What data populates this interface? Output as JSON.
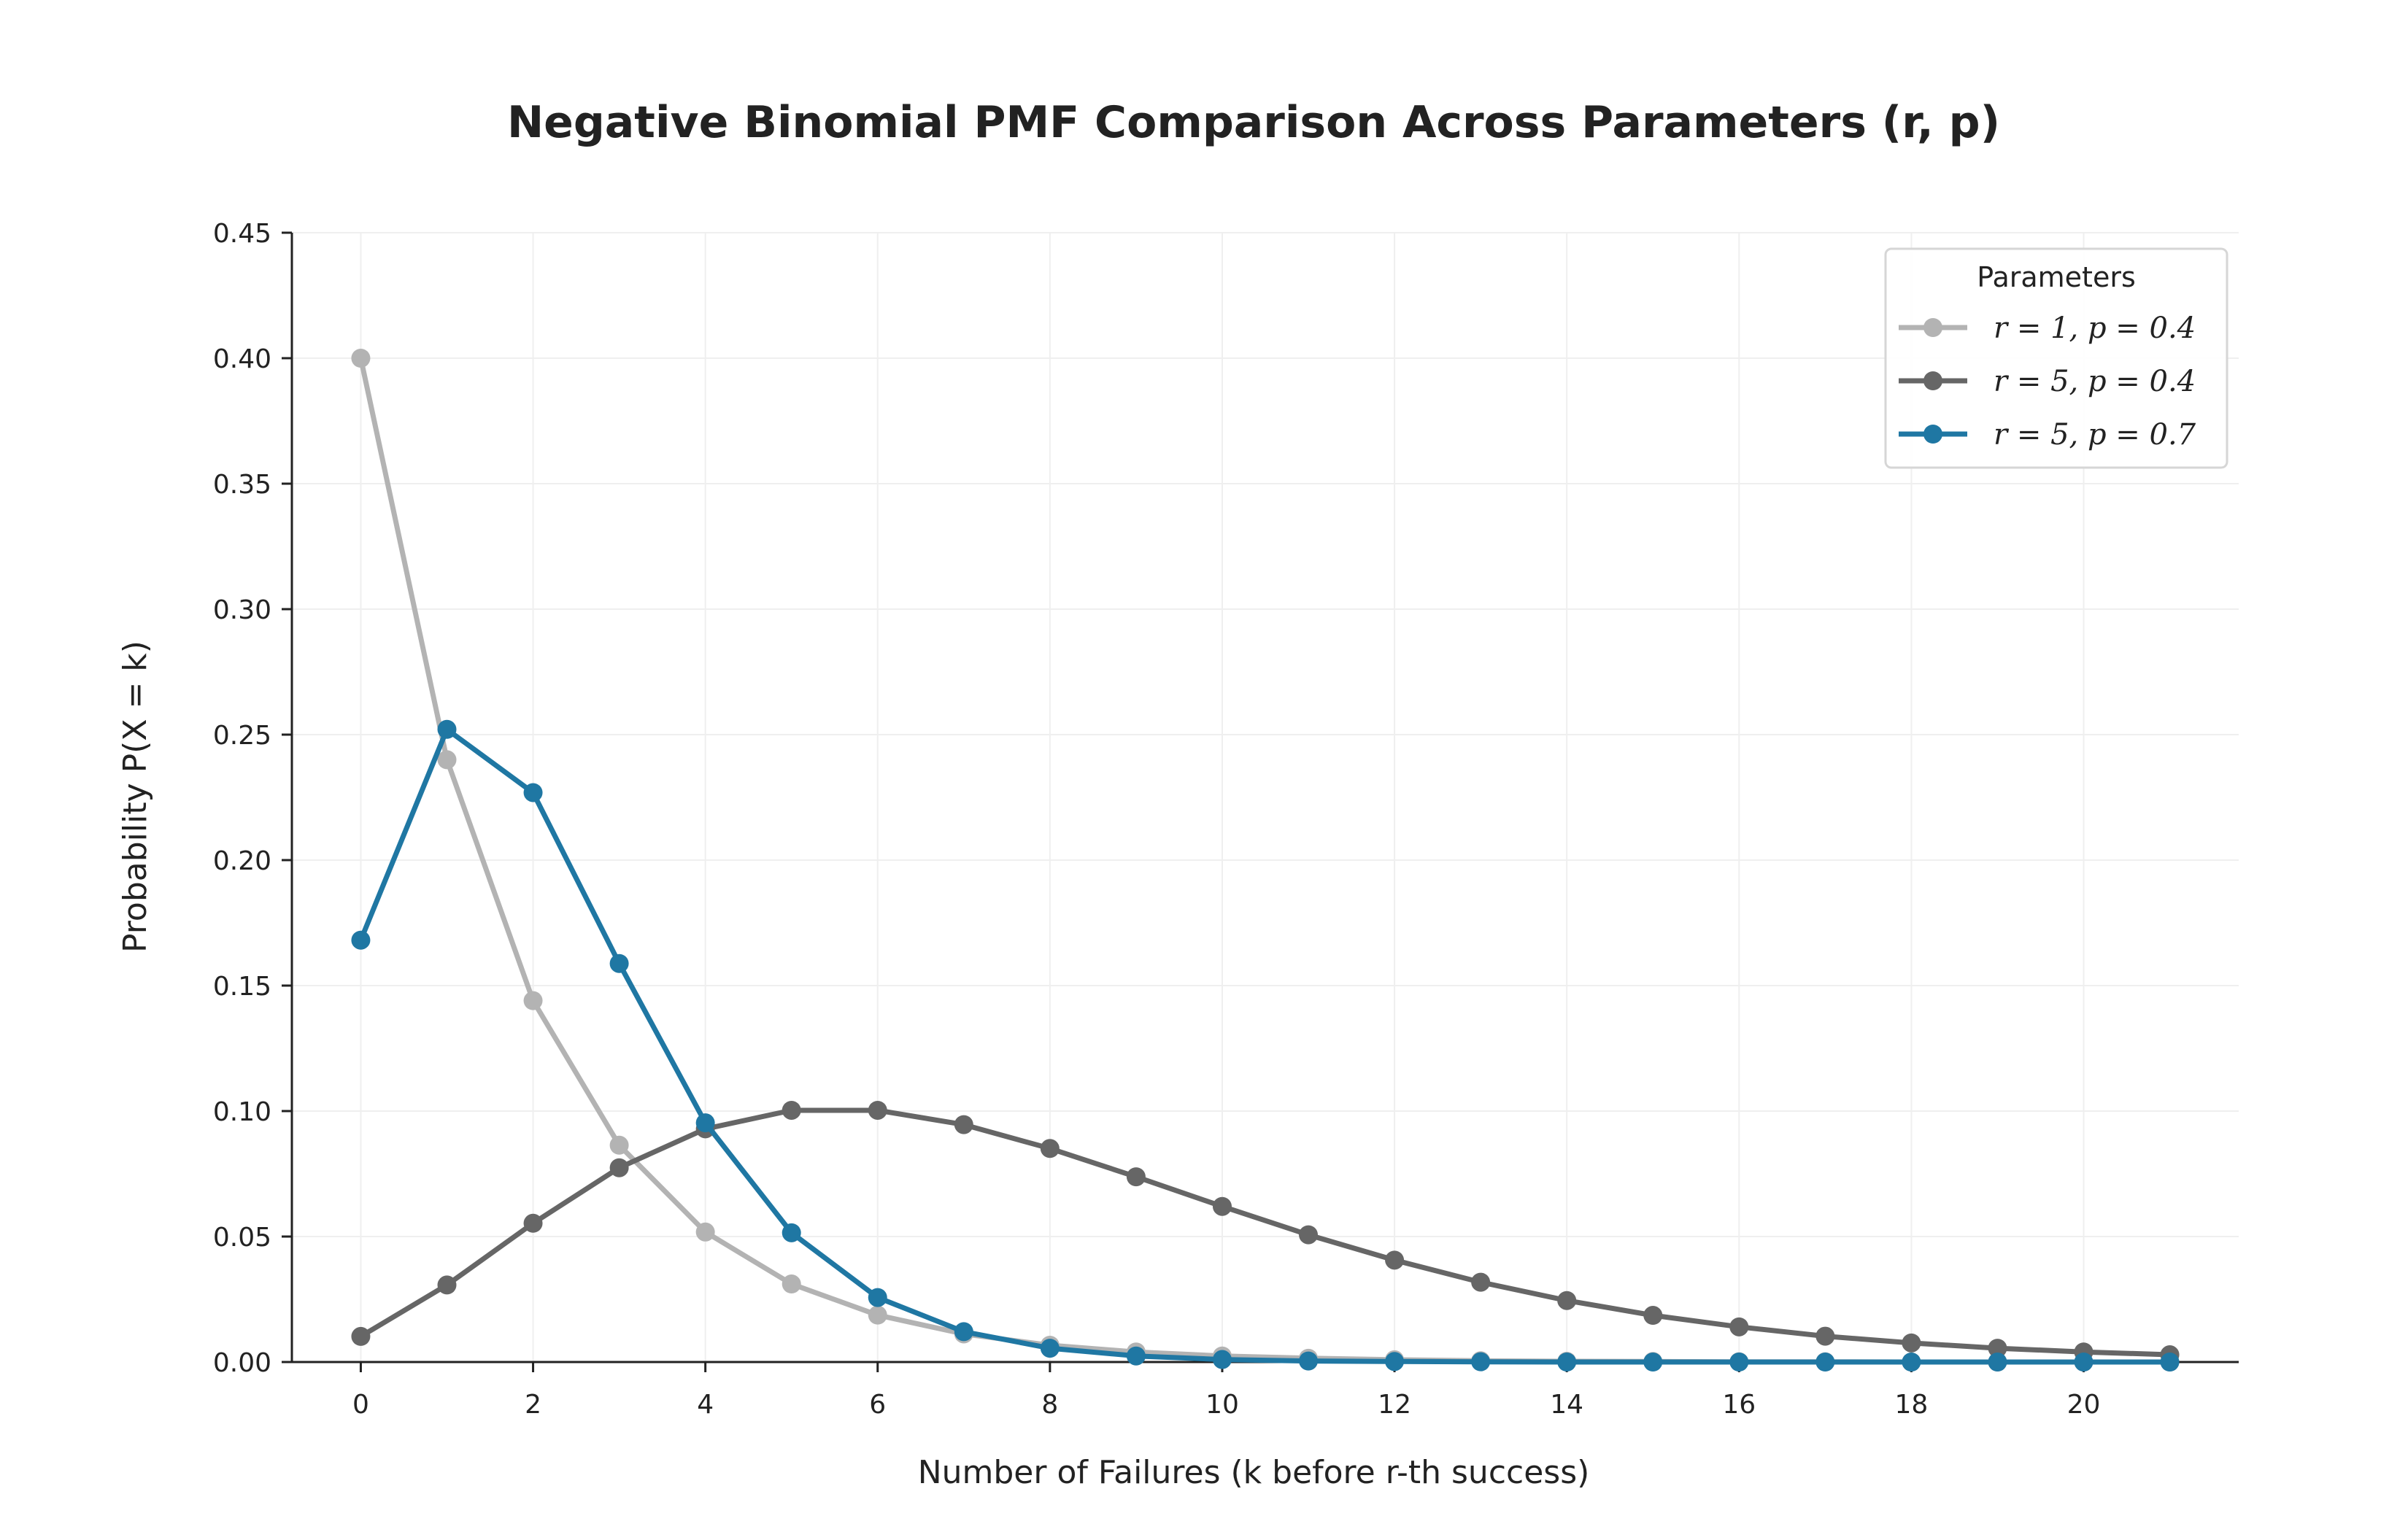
{
  "chart_data": {
    "type": "line",
    "title": "Negative Binomial PMF Comparison Across Parameters (r, p)",
    "xlabel": "Number of Failures (k before r-th success)",
    "ylabel": "Probability P(X = k)",
    "xlim": [
      -0.8,
      21.8
    ],
    "ylim": [
      0,
      0.45
    ],
    "xticks": [
      0,
      2,
      4,
      6,
      8,
      10,
      12,
      14,
      16,
      18,
      20
    ],
    "yticks": [
      0.0,
      0.05,
      0.1,
      0.15,
      0.2,
      0.25,
      0.3,
      0.35,
      0.4,
      0.45
    ],
    "ytick_labels": [
      "0.00",
      "0.05",
      "0.10",
      "0.15",
      "0.20",
      "0.25",
      "0.30",
      "0.35",
      "0.40",
      "0.45"
    ],
    "grid": true,
    "legend": {
      "title": "Parameters",
      "position": "top-right"
    },
    "x": [
      0,
      1,
      2,
      3,
      4,
      5,
      6,
      7,
      8,
      9,
      10,
      11,
      12,
      13,
      14,
      15,
      16,
      17,
      18,
      19,
      20,
      21
    ],
    "series": [
      {
        "name": "r = 1,  p = 0.4",
        "color": "#b3b3b3",
        "values": [
          0.4,
          0.24,
          0.144,
          0.0864,
          0.0518,
          0.0311,
          0.0187,
          0.0112,
          0.0067,
          0.004,
          0.0024,
          0.0015,
          0.0009,
          0.0005,
          0.0003,
          0.0002,
          0.0001,
          0.0001,
          0.0,
          0.0,
          0.0,
          0.0
        ]
      },
      {
        "name": "r = 5,  p = 0.4",
        "color": "#666666",
        "values": [
          0.0102,
          0.0307,
          0.0553,
          0.0774,
          0.0929,
          0.1003,
          0.1003,
          0.0946,
          0.0851,
          0.0738,
          0.062,
          0.0507,
          0.0406,
          0.0318,
          0.0245,
          0.0186,
          0.014,
          0.0103,
          0.0076,
          0.0055,
          0.004,
          0.0029
        ]
      },
      {
        "name": "r = 5,  p = 0.7",
        "color": "#1f77a3",
        "values": [
          0.1681,
          0.2521,
          0.2269,
          0.1588,
          0.0953,
          0.0515,
          0.0257,
          0.0121,
          0.0055,
          0.0024,
          0.001,
          0.0004,
          0.0002,
          0.0001,
          0.0,
          0.0,
          0.0,
          0.0,
          0.0,
          0.0,
          0.0,
          0.0
        ]
      }
    ]
  }
}
